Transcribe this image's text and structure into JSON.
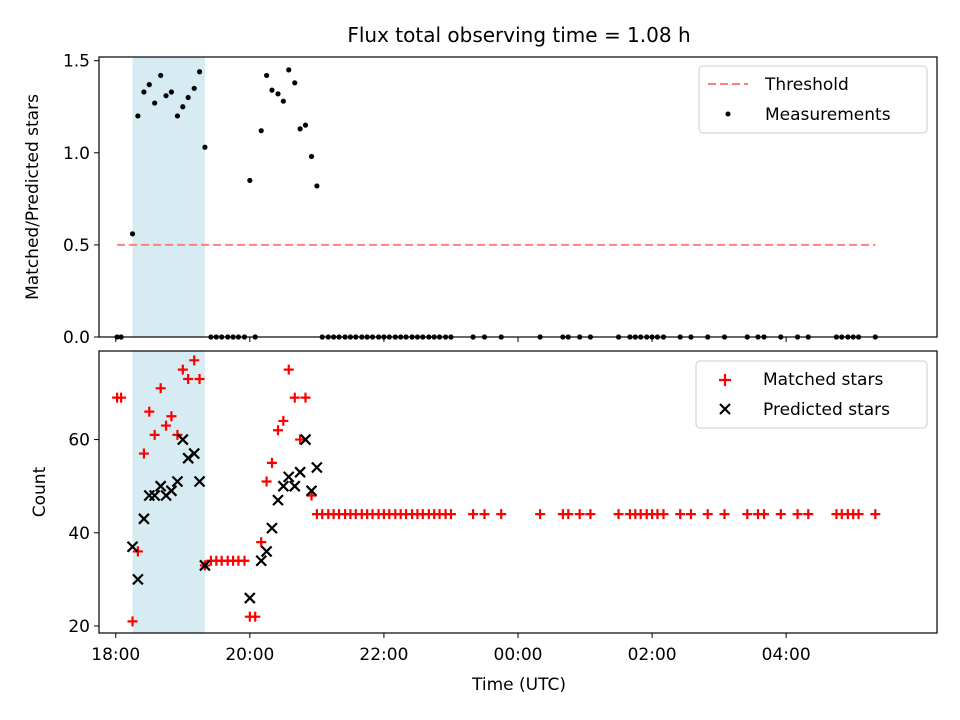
{
  "title": "Flux total observing time = 1.08 h",
  "chart_data": [
    {
      "type": "scatter",
      "ylabel": "Matched/Predicted stars",
      "ylim": [
        0,
        1.52
      ],
      "yticks": [
        "0.0",
        "0.5",
        "1.0",
        "1.5"
      ],
      "shaded_band_hours": [
        18.25,
        19.33
      ],
      "band_color": "#add8e6",
      "legend_position": "upper right",
      "threshold": {
        "name": "Threshold",
        "value": 0.5,
        "x_range": [
          18.02,
          29.33
        ],
        "color": "#ff7f7f"
      },
      "measurements": {
        "name": "Measurements",
        "color": "#000000",
        "points": [
          [
            18.02,
            0
          ],
          [
            18.08,
            0
          ],
          [
            18.25,
            0.56
          ],
          [
            18.33,
            1.2
          ],
          [
            18.42,
            1.33
          ],
          [
            18.5,
            1.37
          ],
          [
            18.58,
            1.27
          ],
          [
            18.67,
            1.42
          ],
          [
            18.75,
            1.31
          ],
          [
            18.83,
            1.33
          ],
          [
            18.92,
            1.2
          ],
          [
            19.0,
            1.25
          ],
          [
            19.08,
            1.3
          ],
          [
            19.17,
            1.35
          ],
          [
            19.25,
            1.44
          ],
          [
            19.33,
            1.03
          ],
          [
            19.42,
            0
          ],
          [
            19.5,
            0
          ],
          [
            19.58,
            0
          ],
          [
            19.67,
            0
          ],
          [
            19.75,
            0
          ],
          [
            19.83,
            0
          ],
          [
            19.92,
            0
          ],
          [
            20.0,
            0.85
          ],
          [
            20.08,
            0
          ],
          [
            20.17,
            1.12
          ],
          [
            20.25,
            1.42
          ],
          [
            20.33,
            1.34
          ],
          [
            20.42,
            1.32
          ],
          [
            20.5,
            1.28
          ],
          [
            20.58,
            1.45
          ],
          [
            20.67,
            1.38
          ],
          [
            20.75,
            1.13
          ],
          [
            20.83,
            1.15
          ],
          [
            20.92,
            0.98
          ],
          [
            21.0,
            0.82
          ],
          [
            21.08,
            0
          ],
          [
            21.17,
            0
          ],
          [
            21.25,
            0
          ],
          [
            21.33,
            0
          ],
          [
            21.42,
            0
          ],
          [
            21.5,
            0
          ],
          [
            21.58,
            0
          ],
          [
            21.67,
            0
          ],
          [
            21.75,
            0
          ],
          [
            21.83,
            0
          ],
          [
            21.92,
            0
          ],
          [
            22.0,
            0
          ],
          [
            22.08,
            0
          ],
          [
            22.17,
            0
          ],
          [
            22.25,
            0
          ],
          [
            22.33,
            0
          ],
          [
            22.42,
            0
          ],
          [
            22.5,
            0
          ],
          [
            22.58,
            0
          ],
          [
            22.67,
            0
          ],
          [
            22.75,
            0
          ],
          [
            22.83,
            0
          ],
          [
            22.92,
            0
          ],
          [
            23.0,
            0
          ],
          [
            23.33,
            0
          ],
          [
            23.5,
            0
          ],
          [
            23.75,
            0
          ],
          [
            24.33,
            0
          ],
          [
            24.67,
            0
          ],
          [
            24.75,
            0
          ],
          [
            24.92,
            0
          ],
          [
            25.08,
            0
          ],
          [
            25.5,
            0
          ],
          [
            25.67,
            0
          ],
          [
            25.75,
            0
          ],
          [
            25.83,
            0
          ],
          [
            25.92,
            0
          ],
          [
            26.0,
            0
          ],
          [
            26.08,
            0
          ],
          [
            26.17,
            0
          ],
          [
            26.42,
            0
          ],
          [
            26.58,
            0
          ],
          [
            26.83,
            0
          ],
          [
            27.08,
            0
          ],
          [
            27.42,
            0
          ],
          [
            27.58,
            0
          ],
          [
            27.67,
            0
          ],
          [
            27.92,
            0
          ],
          [
            28.17,
            0
          ],
          [
            28.33,
            0
          ],
          [
            28.75,
            0
          ],
          [
            28.83,
            0
          ],
          [
            28.92,
            0
          ],
          [
            29.0,
            0
          ],
          [
            29.08,
            0
          ],
          [
            29.33,
            0
          ]
        ]
      }
    },
    {
      "type": "scatter",
      "xlabel": "Time (UTC)",
      "ylabel": "Count",
      "ylim": [
        18.5,
        79
      ],
      "yticks": [
        "20",
        "40",
        "60"
      ],
      "xlim": [
        17.75,
        30.25
      ],
      "xticks": [
        "18:00",
        "20:00",
        "22:00",
        "00:00",
        "02:00",
        "04:00"
      ],
      "shaded_band_hours": [
        18.25,
        19.33
      ],
      "band_color": "#add8e6",
      "legend_position": "upper right",
      "matched": {
        "name": "Matched stars",
        "color": "#ff0000",
        "points": [
          [
            18.02,
            69
          ],
          [
            18.08,
            69
          ],
          [
            18.25,
            21
          ],
          [
            18.33,
            36
          ],
          [
            18.42,
            57
          ],
          [
            18.5,
            66
          ],
          [
            18.58,
            61
          ],
          [
            18.67,
            71
          ],
          [
            18.75,
            63
          ],
          [
            18.83,
            65
          ],
          [
            18.92,
            61
          ],
          [
            19.0,
            75
          ],
          [
            19.08,
            73
          ],
          [
            19.17,
            77
          ],
          [
            19.25,
            73
          ],
          [
            19.33,
            33
          ],
          [
            19.42,
            34
          ],
          [
            19.5,
            34
          ],
          [
            19.58,
            34
          ],
          [
            19.67,
            34
          ],
          [
            19.75,
            34
          ],
          [
            19.83,
            34
          ],
          [
            19.92,
            34
          ],
          [
            20.0,
            22
          ],
          [
            20.08,
            22
          ],
          [
            20.17,
            38
          ],
          [
            20.25,
            51
          ],
          [
            20.33,
            55
          ],
          [
            20.42,
            62
          ],
          [
            20.5,
            64
          ],
          [
            20.58,
            75
          ],
          [
            20.67,
            69
          ],
          [
            20.75,
            60
          ],
          [
            20.83,
            69
          ],
          [
            20.92,
            48
          ],
          [
            21.0,
            44
          ],
          [
            21.08,
            44
          ],
          [
            21.17,
            44
          ],
          [
            21.25,
            44
          ],
          [
            21.33,
            44
          ],
          [
            21.42,
            44
          ],
          [
            21.5,
            44
          ],
          [
            21.58,
            44
          ],
          [
            21.67,
            44
          ],
          [
            21.75,
            44
          ],
          [
            21.83,
            44
          ],
          [
            21.92,
            44
          ],
          [
            22.0,
            44
          ],
          [
            22.08,
            44
          ],
          [
            22.17,
            44
          ],
          [
            22.25,
            44
          ],
          [
            22.33,
            44
          ],
          [
            22.42,
            44
          ],
          [
            22.5,
            44
          ],
          [
            22.58,
            44
          ],
          [
            22.67,
            44
          ],
          [
            22.75,
            44
          ],
          [
            22.83,
            44
          ],
          [
            22.92,
            44
          ],
          [
            23.0,
            44
          ],
          [
            23.33,
            44
          ],
          [
            23.5,
            44
          ],
          [
            23.75,
            44
          ],
          [
            24.33,
            44
          ],
          [
            24.67,
            44
          ],
          [
            24.75,
            44
          ],
          [
            24.92,
            44
          ],
          [
            25.08,
            44
          ],
          [
            25.5,
            44
          ],
          [
            25.67,
            44
          ],
          [
            25.75,
            44
          ],
          [
            25.83,
            44
          ],
          [
            25.92,
            44
          ],
          [
            26.0,
            44
          ],
          [
            26.08,
            44
          ],
          [
            26.17,
            44
          ],
          [
            26.42,
            44
          ],
          [
            26.58,
            44
          ],
          [
            26.83,
            44
          ],
          [
            27.08,
            44
          ],
          [
            27.42,
            44
          ],
          [
            27.58,
            44
          ],
          [
            27.67,
            44
          ],
          [
            27.92,
            44
          ],
          [
            28.17,
            44
          ],
          [
            28.33,
            44
          ],
          [
            28.75,
            44
          ],
          [
            28.83,
            44
          ],
          [
            28.92,
            44
          ],
          [
            29.0,
            44
          ],
          [
            29.08,
            44
          ],
          [
            29.33,
            44
          ]
        ]
      },
      "predicted": {
        "name": "Predicted stars",
        "color": "#000000",
        "points": [
          [
            18.25,
            37
          ],
          [
            18.33,
            30
          ],
          [
            18.42,
            43
          ],
          [
            18.5,
            48
          ],
          [
            18.58,
            48
          ],
          [
            18.67,
            50
          ],
          [
            18.75,
            48
          ],
          [
            18.83,
            49
          ],
          [
            18.92,
            51
          ],
          [
            19.0,
            60
          ],
          [
            19.08,
            56
          ],
          [
            19.17,
            57
          ],
          [
            19.25,
            51
          ],
          [
            19.33,
            33
          ],
          [
            20.0,
            26
          ],
          [
            20.17,
            34
          ],
          [
            20.25,
            36
          ],
          [
            20.33,
            41
          ],
          [
            20.42,
            47
          ],
          [
            20.5,
            50
          ],
          [
            20.58,
            52
          ],
          [
            20.67,
            50
          ],
          [
            20.75,
            53
          ],
          [
            20.83,
            60
          ],
          [
            20.92,
            49
          ],
          [
            21.0,
            54
          ]
        ]
      }
    }
  ]
}
